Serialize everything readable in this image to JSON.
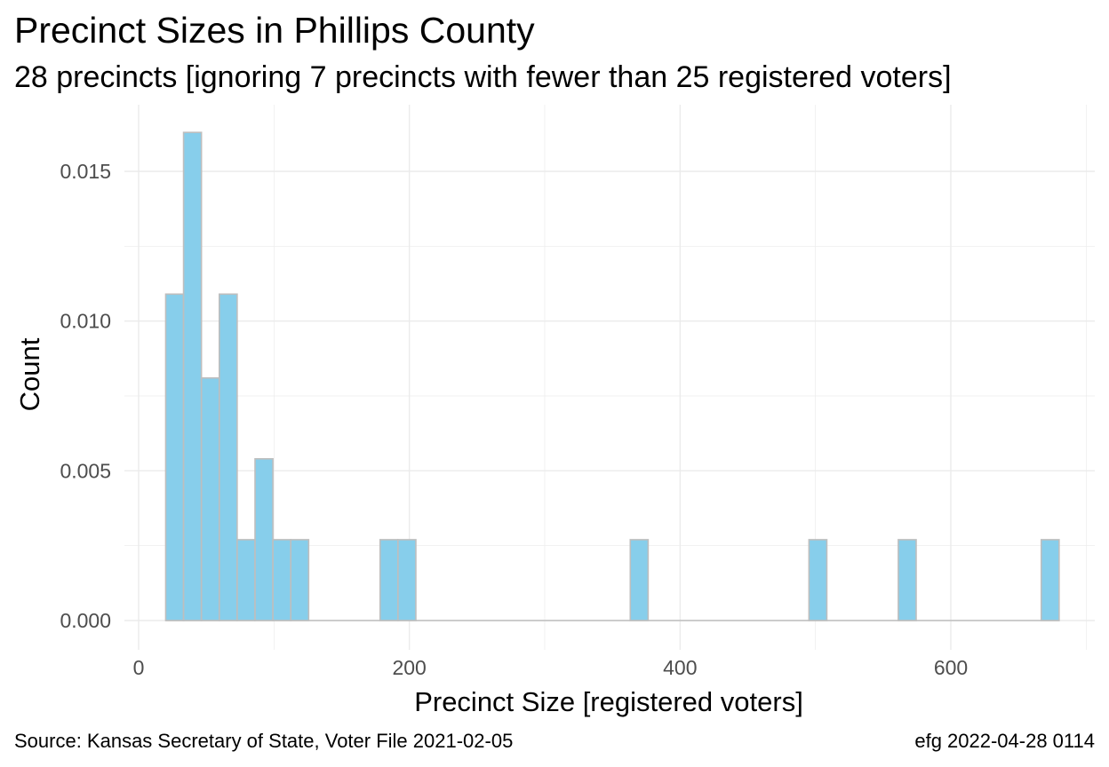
{
  "chart_data": {
    "type": "bar",
    "title": "Precinct Sizes in Phillips County",
    "subtitle": "28 precincts [ignoring 7 precincts with fewer than 25 registered voters]",
    "xlabel": "Precinct Size [registered voters]",
    "ylabel": "Count",
    "xlim": [
      -10,
      700
    ],
    "ylim": [
      -0.0008,
      0.0168
    ],
    "x_ticks": [
      0,
      200,
      400,
      600
    ],
    "y_ticks": [
      0.0,
      0.005,
      0.01,
      0.015
    ],
    "y_tick_labels": [
      "0.000",
      "0.005",
      "0.010",
      "0.015"
    ],
    "grid": true,
    "bin_width": 13.2,
    "bins": [
      {
        "x0": 20.0,
        "x1": 33.2,
        "value": 0.0109
      },
      {
        "x0": 33.2,
        "x1": 46.4,
        "value": 0.0163
      },
      {
        "x0": 46.4,
        "x1": 59.6,
        "value": 0.0081
      },
      {
        "x0": 59.6,
        "x1": 72.8,
        "value": 0.0109
      },
      {
        "x0": 72.8,
        "x1": 86.0,
        "value": 0.0027
      },
      {
        "x0": 86.0,
        "x1": 99.2,
        "value": 0.0054
      },
      {
        "x0": 99.2,
        "x1": 112.4,
        "value": 0.0027
      },
      {
        "x0": 112.4,
        "x1": 125.6,
        "value": 0.0027
      },
      {
        "x0": 178.4,
        "x1": 191.6,
        "value": 0.0027
      },
      {
        "x0": 191.6,
        "x1": 204.8,
        "value": 0.0027
      },
      {
        "x0": 363.2,
        "x1": 376.4,
        "value": 0.0027
      },
      {
        "x0": 495.2,
        "x1": 508.4,
        "value": 0.0027
      },
      {
        "x0": 561.2,
        "x1": 574.4,
        "value": 0.0027
      },
      {
        "x0": 666.8,
        "x1": 680.0,
        "value": 0.0027
      }
    ],
    "colors": {
      "bar_fill": "#87CEEB",
      "bar_stroke": "#BEBEBE",
      "grid": "#EBEBEB",
      "baseline": "#BEBEBE"
    }
  },
  "caption": {
    "source": "Source:  Kansas Secretary of State, Voter File  2021-02-05",
    "credit": "efg 2022-04-28 0114"
  }
}
